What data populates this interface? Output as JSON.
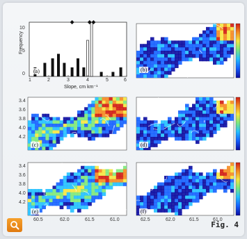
{
  "figure": {
    "caption": "Fig. 4",
    "histogram": {
      "ylabel": "Frequency",
      "xlabel": "Slope, cm km⁻¹",
      "yticks": [
        "0",
        "5",
        "10"
      ],
      "xticks": [
        "1",
        "2",
        "3",
        "4",
        "5",
        "6"
      ],
      "label": "(a)"
    },
    "panels": [
      {
        "label": "(b)"
      },
      {
        "label": "(c)"
      },
      {
        "label": "(d)"
      },
      {
        "label": "(e)"
      },
      {
        "label": "(f)"
      }
    ],
    "lat_ticks": [
      "3.4",
      "3.6",
      "3.8",
      "4.0",
      "4.2"
    ],
    "lon_ticks_left": [
      "60.5",
      "62.0",
      "61.5",
      "61.0"
    ],
    "lon_ticks_right": [
      "62.5",
      "62.0",
      "61.5",
      "61.0"
    ],
    "colorbar_colors": [
      "#0a0aa0",
      "#1460ff",
      "#22c0ff",
      "#7de87a",
      "#f5e640",
      "#f58a20",
      "#d01a10"
    ]
  },
  "chart_data": {
    "type": "bar",
    "title": "",
    "xlabel": "Slope, cm km⁻¹",
    "ylabel": "Frequency",
    "ylim": [
      0,
      12
    ],
    "xlim": [
      1,
      6
    ],
    "series": [
      {
        "values": [
          [
            1.3,
            2
          ],
          [
            1.8,
            3
          ],
          [
            2.2,
            4
          ],
          [
            2.5,
            5
          ],
          [
            2.8,
            3
          ],
          [
            3.2,
            2
          ],
          [
            3.5,
            4
          ],
          [
            3.8,
            2
          ],
          [
            4.7,
            1
          ],
          [
            5.3,
            1
          ],
          [
            5.7,
            2
          ]
        ]
      },
      {
        "values": [
          [
            4.0,
            8
          ],
          [
            4.2,
            12
          ]
        ]
      }
    ],
    "markers": [
      {
        "x": 3.2,
        "y": 12
      },
      {
        "x": 4.1,
        "y": 12
      },
      {
        "x": 4.3,
        "y": 12
      }
    ]
  }
}
